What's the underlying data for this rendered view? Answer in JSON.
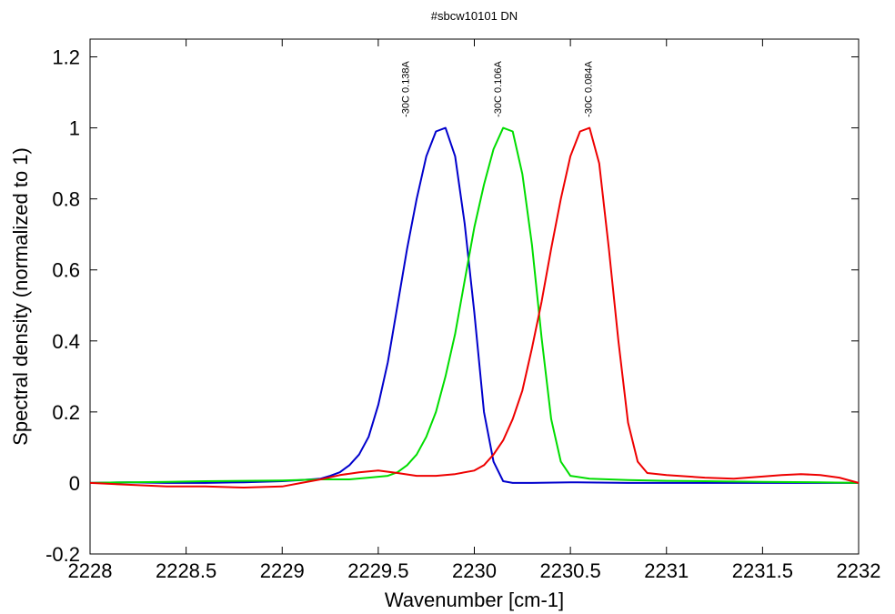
{
  "chart_data": {
    "type": "line",
    "title": "#sbcw10101 DN",
    "xlabel": "Wavenumber [cm-1]",
    "ylabel": "Spectral density (normalized to 1)",
    "xlim": [
      2228,
      2232
    ],
    "ylim": [
      -0.2,
      1.25
    ],
    "x_ticks": [
      2228,
      2228.5,
      2229,
      2229.5,
      2230,
      2230.5,
      2231,
      2231.5,
      2232
    ],
    "x_tick_labels": [
      "2228",
      "2228.5",
      "2229",
      "2229.5",
      "2230",
      "2230.5",
      "2231",
      "2231.5",
      "2232"
    ],
    "y_ticks": [
      -0.2,
      0,
      0.2,
      0.4,
      0.6,
      0.8,
      1,
      1.2
    ],
    "y_tick_labels": [
      "-0.2",
      "0",
      "0.2",
      "0.4",
      "0.6",
      "0.8",
      "1",
      "1.2"
    ],
    "grid": false,
    "legend": "none",
    "annotations": [
      {
        "text": "-30C 0.138A",
        "x": 2229.66,
        "y": 1.03
      },
      {
        "text": "-30C 0.106A",
        "x": 2230.14,
        "y": 1.03
      },
      {
        "text": "-30C 0.084A",
        "x": 2230.61,
        "y": 1.03
      }
    ],
    "series": [
      {
        "color": "#0000cc",
        "points": [
          [
            2228.0,
            0.0
          ],
          [
            2228.2,
            0.002
          ],
          [
            2228.4,
            0.0
          ],
          [
            2228.6,
            0.0
          ],
          [
            2228.8,
            0.002
          ],
          [
            2229.0,
            0.005
          ],
          [
            2229.1,
            0.008
          ],
          [
            2229.2,
            0.012
          ],
          [
            2229.25,
            0.02
          ],
          [
            2229.3,
            0.03
          ],
          [
            2229.35,
            0.05
          ],
          [
            2229.4,
            0.08
          ],
          [
            2229.45,
            0.13
          ],
          [
            2229.5,
            0.22
          ],
          [
            2229.55,
            0.34
          ],
          [
            2229.6,
            0.5
          ],
          [
            2229.65,
            0.66
          ],
          [
            2229.7,
            0.8
          ],
          [
            2229.75,
            0.92
          ],
          [
            2229.8,
            0.99
          ],
          [
            2229.85,
            1.0
          ],
          [
            2229.9,
            0.92
          ],
          [
            2229.95,
            0.73
          ],
          [
            2230.0,
            0.48
          ],
          [
            2230.05,
            0.2
          ],
          [
            2230.1,
            0.06
          ],
          [
            2230.15,
            0.005
          ],
          [
            2230.2,
            0.0
          ],
          [
            2230.3,
            0.0
          ],
          [
            2230.5,
            0.002
          ],
          [
            2230.8,
            0.0
          ],
          [
            2231.0,
            0.0
          ],
          [
            2231.2,
            0.0
          ],
          [
            2231.5,
            0.0
          ],
          [
            2231.8,
            0.0
          ],
          [
            2232.0,
            0.0
          ]
        ]
      },
      {
        "color": "#00dd00",
        "points": [
          [
            2228.0,
            0.0
          ],
          [
            2228.2,
            0.002
          ],
          [
            2228.4,
            0.003
          ],
          [
            2228.6,
            0.005
          ],
          [
            2228.8,
            0.006
          ],
          [
            2229.0,
            0.007
          ],
          [
            2229.2,
            0.01
          ],
          [
            2229.35,
            0.01
          ],
          [
            2229.45,
            0.015
          ],
          [
            2229.55,
            0.02
          ],
          [
            2229.6,
            0.03
          ],
          [
            2229.65,
            0.05
          ],
          [
            2229.7,
            0.08
          ],
          [
            2229.75,
            0.13
          ],
          [
            2229.8,
            0.2
          ],
          [
            2229.85,
            0.3
          ],
          [
            2229.9,
            0.42
          ],
          [
            2229.95,
            0.57
          ],
          [
            2230.0,
            0.72
          ],
          [
            2230.05,
            0.84
          ],
          [
            2230.1,
            0.94
          ],
          [
            2230.15,
            1.0
          ],
          [
            2230.2,
            0.99
          ],
          [
            2230.25,
            0.87
          ],
          [
            2230.3,
            0.67
          ],
          [
            2230.35,
            0.41
          ],
          [
            2230.4,
            0.18
          ],
          [
            2230.45,
            0.06
          ],
          [
            2230.5,
            0.02
          ],
          [
            2230.6,
            0.012
          ],
          [
            2230.8,
            0.008
          ],
          [
            2231.0,
            0.006
          ],
          [
            2231.2,
            0.005
          ],
          [
            2231.5,
            0.003
          ],
          [
            2231.8,
            0.002
          ],
          [
            2232.0,
            0.0
          ]
        ]
      },
      {
        "color": "#ee0000",
        "points": [
          [
            2228.0,
            0.0
          ],
          [
            2228.2,
            -0.005
          ],
          [
            2228.4,
            -0.01
          ],
          [
            2228.6,
            -0.01
          ],
          [
            2228.8,
            -0.013
          ],
          [
            2229.0,
            -0.01
          ],
          [
            2229.1,
            0.0
          ],
          [
            2229.2,
            0.01
          ],
          [
            2229.3,
            0.022
          ],
          [
            2229.4,
            0.03
          ],
          [
            2229.5,
            0.035
          ],
          [
            2229.6,
            0.028
          ],
          [
            2229.7,
            0.02
          ],
          [
            2229.8,
            0.02
          ],
          [
            2229.9,
            0.025
          ],
          [
            2230.0,
            0.035
          ],
          [
            2230.05,
            0.05
          ],
          [
            2230.1,
            0.08
          ],
          [
            2230.15,
            0.12
          ],
          [
            2230.2,
            0.18
          ],
          [
            2230.25,
            0.26
          ],
          [
            2230.3,
            0.38
          ],
          [
            2230.35,
            0.51
          ],
          [
            2230.4,
            0.66
          ],
          [
            2230.45,
            0.8
          ],
          [
            2230.5,
            0.92
          ],
          [
            2230.55,
            0.99
          ],
          [
            2230.6,
            1.0
          ],
          [
            2230.65,
            0.9
          ],
          [
            2230.7,
            0.66
          ],
          [
            2230.75,
            0.4
          ],
          [
            2230.8,
            0.17
          ],
          [
            2230.85,
            0.06
          ],
          [
            2230.9,
            0.028
          ],
          [
            2231.0,
            0.022
          ],
          [
            2231.2,
            0.015
          ],
          [
            2231.35,
            0.012
          ],
          [
            2231.5,
            0.018
          ],
          [
            2231.6,
            0.022
          ],
          [
            2231.7,
            0.025
          ],
          [
            2231.8,
            0.022
          ],
          [
            2231.9,
            0.015
          ],
          [
            2232.0,
            0.0
          ]
        ]
      }
    ]
  }
}
